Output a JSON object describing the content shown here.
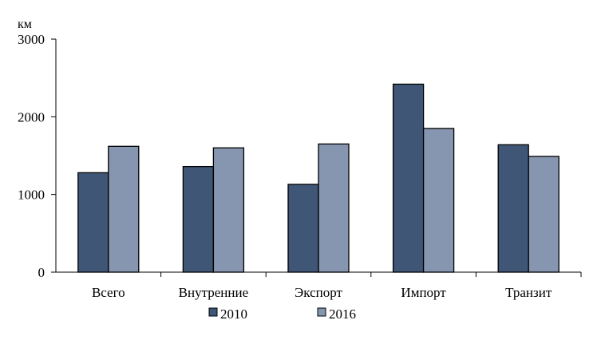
{
  "chart_data": {
    "type": "bar",
    "title": "",
    "xlabel": "",
    "ylabel": "",
    "unit_label": "км",
    "categories": [
      "Всего",
      "Внутренние",
      "Экспорт",
      "Импорт",
      "Транзит"
    ],
    "series": [
      {
        "name": "2010",
        "color": "#3f5677",
        "values": [
          1280,
          1360,
          1130,
          2420,
          1640
        ]
      },
      {
        "name": "2016",
        "color": "#8696b0",
        "values": [
          1620,
          1600,
          1650,
          1850,
          1490
        ]
      }
    ],
    "ylim": [
      0,
      3000
    ],
    "yticks": [
      0,
      1000,
      2000,
      3000
    ],
    "ytick_labels": [
      "0",
      "1000",
      "2000",
      "3000"
    ],
    "grid": false,
    "legend_position": "bottom-center"
  }
}
